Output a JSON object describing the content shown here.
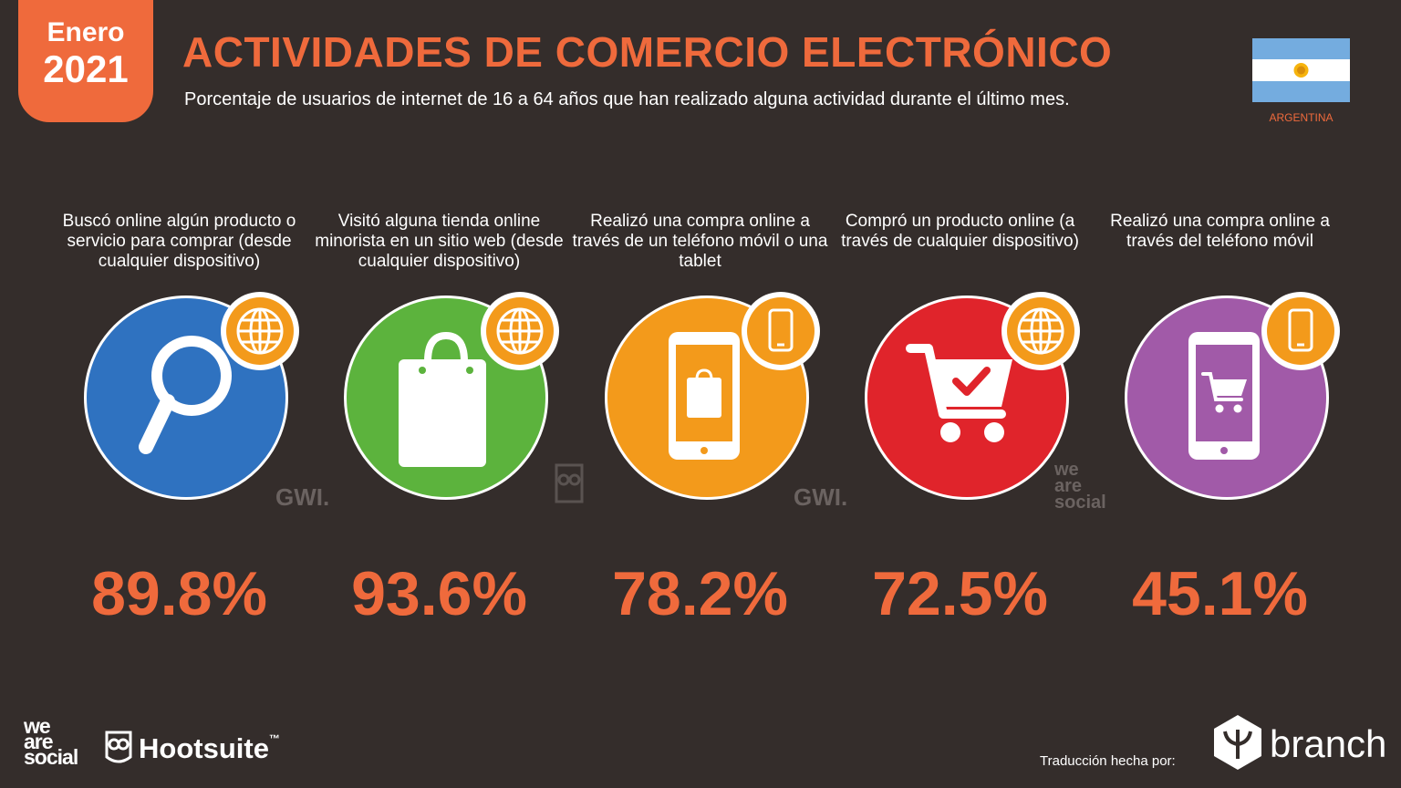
{
  "header": {
    "month": "Enero",
    "year": "2021",
    "title": "ACTIVIDADES DE COMERCIO ELECTRÓNICO",
    "subtitle": "Porcentaje de usuarios de internet de 16 a 64 años que han realizado alguna actividad durante el último mes.",
    "country": "ARGENTINA"
  },
  "colors": {
    "background": "#342d2b",
    "accent": "#ef6a3c",
    "badge": "#f39a1b"
  },
  "cards": [
    {
      "label": "Buscó online algún producto o servicio para comprar (desde cualquier dispositivo)",
      "value": "89.8%",
      "color": "#2f72c0",
      "icon": "magnifier-icon",
      "badge_icon": "globe-icon"
    },
    {
      "label": "Visitó alguna tienda online minorista en un sitio web (desde cualquier dispositivo)",
      "value": "93.6%",
      "color": "#5cb33d",
      "icon": "shopping-bag-icon",
      "badge_icon": "globe-icon"
    },
    {
      "label": "Realizó una compra online a través de un teléfono móvil o una tablet",
      "value": "78.2%",
      "color": "#f39a1b",
      "icon": "phone-bag-icon",
      "badge_icon": "phone-icon"
    },
    {
      "label": "Compró un producto online (a través de cualquier dispositivo)",
      "value": "72.5%",
      "color": "#e0242b",
      "icon": "cart-icon",
      "badge_icon": "globe-icon"
    },
    {
      "label": "Realizó una compra online a través del teléfono móvil",
      "value": "45.1%",
      "color": "#a15aa8",
      "icon": "phone-cart-icon",
      "badge_icon": "phone-icon"
    }
  ],
  "watermarks": {
    "gwi": "GWI.",
    "we": "we",
    "are": "are",
    "social": "social"
  },
  "footer": {
    "we": "we",
    "are": "are",
    "social": "social",
    "hootsuite": "Hootsuite",
    "tm": "™",
    "translation": "Traducción hecha por:",
    "branch": "branch"
  }
}
